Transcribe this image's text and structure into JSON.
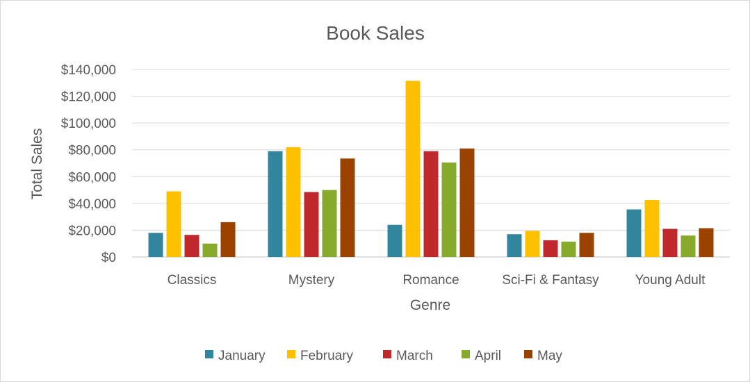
{
  "chart_data": {
    "type": "bar",
    "title": "Book Sales",
    "xlabel": "Genre",
    "ylabel": "Total Sales",
    "categories": [
      "Classics",
      "Mystery",
      "Romance",
      "Sci-Fi & Fantasy",
      "Young Adult"
    ],
    "series": [
      {
        "name": "January",
        "color": "#31859c",
        "values": [
          18000,
          79000,
          24000,
          17000,
          35500
        ]
      },
      {
        "name": "February",
        "color": "#ffc000",
        "values": [
          49000,
          82000,
          131500,
          19500,
          42500
        ]
      },
      {
        "name": "March",
        "color": "#c0292b",
        "values": [
          16500,
          48500,
          79000,
          12500,
          21000
        ]
      },
      {
        "name": "April",
        "color": "#88aa2c",
        "values": [
          10000,
          50000,
          70500,
          11500,
          16000
        ]
      },
      {
        "name": "May",
        "color": "#9a4200",
        "values": [
          26000,
          73500,
          81000,
          18000,
          21500
        ]
      }
    ],
    "ylim": [
      0,
      140000
    ],
    "yticks": [
      0,
      20000,
      40000,
      60000,
      80000,
      100000,
      120000,
      140000
    ],
    "ytick_labels": [
      "$0",
      "$20,000",
      "$40,000",
      "$60,000",
      "$80,000",
      "$100,000",
      "$120,000",
      "$140,000"
    ],
    "grid": true,
    "legend_position": "bottom"
  }
}
